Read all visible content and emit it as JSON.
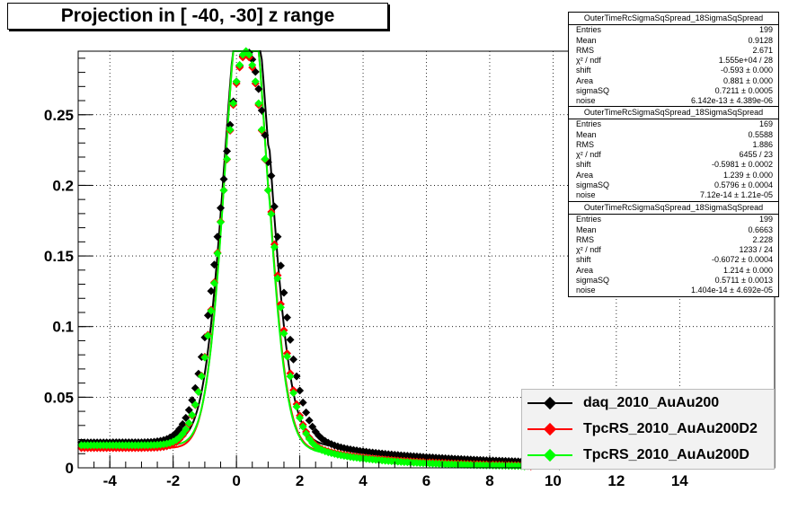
{
  "title": "Projection in [ -40, -30] z range",
  "stats": [
    {
      "name": "OuterTimeRcSigmaSqSpread_18SigmaSqSpread",
      "rows": [
        [
          "Entries",
          "199"
        ],
        [
          "Mean",
          "0.9128"
        ],
        [
          "RMS",
          "2.671"
        ],
        [
          "χ² / ndf",
          "1.555e+04 / 28"
        ],
        [
          "shift",
          "-0.593 ± 0.000"
        ],
        [
          "Area",
          "0.881 ± 0.000"
        ],
        [
          "sigmaSQ",
          "0.7211 ± 0.0005"
        ],
        [
          "noise",
          "6.142e-13 ± 4.389e-06"
        ]
      ]
    },
    {
      "name": "OuterTimeRcSigmaSqSpread_18SigmaSqSpread",
      "rows": [
        [
          "Entries",
          "169"
        ],
        [
          "Mean",
          "0.5588"
        ],
        [
          "RMS",
          "1.886"
        ],
        [
          "χ² / ndf",
          "6455 / 23"
        ],
        [
          "shift",
          "-0.5981 ± 0.0002"
        ],
        [
          "Area",
          "1.239 ± 0.000"
        ],
        [
          "sigmaSQ",
          "0.5796 ± 0.0004"
        ],
        [
          "noise",
          "7.12e-14 ± 1.21e-05"
        ]
      ]
    },
    {
      "name": "OuterTimeRcSigmaSqSpread_18SigmaSqSpread",
      "rows": [
        [
          "Entries",
          "199"
        ],
        [
          "Mean",
          "0.6663"
        ],
        [
          "RMS",
          "2.228"
        ],
        [
          "χ² / ndf",
          "1233 / 24"
        ],
        [
          "shift",
          "-0.6072 ± 0.0004"
        ],
        [
          "Area",
          "1.214 ± 0.000"
        ],
        [
          "sigmaSQ",
          "0.5711 ± 0.0013"
        ],
        [
          "noise",
          "1.404e-14 ± 4.692e-05"
        ]
      ]
    }
  ],
  "legend": [
    {
      "label": "daq_2010_AuAu200",
      "color": "#000000"
    },
    {
      "label": "TpcRS_2010_AuAu200D2",
      "color": "#ff0000"
    },
    {
      "label": "TpcRS_2010_AuAu200D",
      "color": "#00ff00"
    }
  ],
  "chart_data": {
    "type": "scatter",
    "xlim": [
      -5,
      17
    ],
    "ylim": [
      0,
      0.295
    ],
    "xticks": [
      "-4",
      "-2",
      "0",
      "2",
      "4",
      "6",
      "8",
      "10",
      "12",
      "14"
    ],
    "yticks": [
      "0",
      "0.05",
      "0.1",
      "0.15",
      "0.2",
      "0.25"
    ],
    "grid": true,
    "series": [
      {
        "name": "daq_2010_AuAu200",
        "color": "#000000",
        "params": {
          "mean": 0.33,
          "sigma": 0.82,
          "amp": 0.277,
          "base": 0.018,
          "tail": 0.012,
          "tail_decay": 6.0,
          "edge": 9
        }
      },
      {
        "name": "TpcRS_2010_AuAu200D2",
        "color": "#ff0000",
        "params": {
          "mean": 0.3,
          "sigma": 0.76,
          "amp": 0.279,
          "base": 0.014,
          "tail": 0.008,
          "tail_decay": 4.0,
          "edge": 9
        }
      },
      {
        "name": "TpcRS_2010_AuAu200D",
        "color": "#00ff00",
        "params": {
          "mean": 0.3,
          "sigma": 0.75,
          "amp": 0.279,
          "base": 0.016,
          "tail": 0.007,
          "tail_decay": 3.5,
          "edge": 9
        }
      }
    ]
  }
}
